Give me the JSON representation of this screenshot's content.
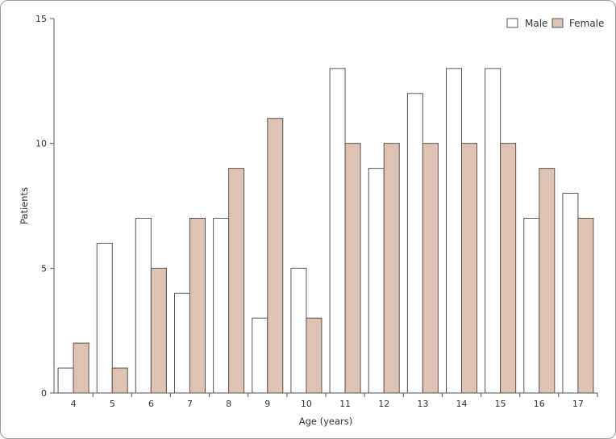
{
  "chart_data": {
    "type": "bar",
    "title": "",
    "xlabel": "Age (years)",
    "ylabel": "Patients",
    "ylim": [
      0,
      15
    ],
    "yticks": [
      0,
      5,
      10,
      15
    ],
    "grid": false,
    "legend_position": "top-right",
    "categories": [
      "4",
      "5",
      "6",
      "7",
      "8",
      "9",
      "10",
      "11",
      "12",
      "13",
      "14",
      "15",
      "16",
      "17"
    ],
    "series": [
      {
        "name": "Male",
        "values": [
          1,
          6,
          7,
          4,
          7,
          3,
          5,
          13,
          9,
          12,
          13,
          13,
          7,
          8
        ],
        "color": "#ffffff"
      },
      {
        "name": "Female",
        "values": [
          2,
          1,
          5,
          7,
          9,
          11,
          3,
          10,
          10,
          10,
          10,
          10,
          9,
          7
        ],
        "color": "#e0c2b2"
      }
    ]
  }
}
